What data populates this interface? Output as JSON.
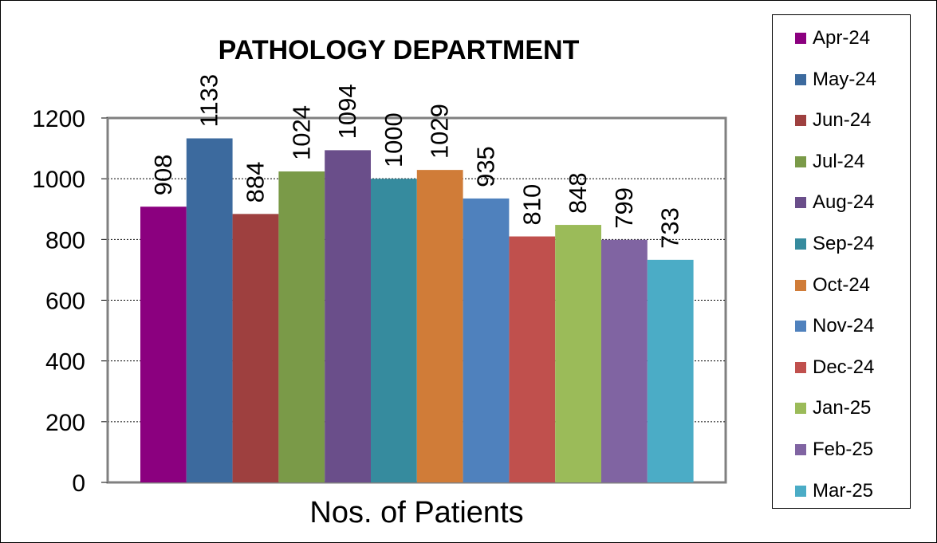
{
  "chart_data": {
    "type": "bar",
    "title": "PATHOLOGY DEPARTMENT",
    "xlabel": "Nos. of Patients",
    "ylabel": "",
    "ylim": [
      0,
      1200
    ],
    "yticks": [
      0,
      200,
      400,
      600,
      800,
      1000,
      1200
    ],
    "grid": true,
    "legend_position": "right",
    "series": [
      {
        "name": "Apr-24",
        "value": 908,
        "color": "#8B007F"
      },
      {
        "name": "May-24",
        "value": 1133,
        "color": "#3C6A9E"
      },
      {
        "name": "Jun-24",
        "value": 884,
        "color": "#9E403F"
      },
      {
        "name": "Jul-24",
        "value": 1024,
        "color": "#7A9A48"
      },
      {
        "name": "Aug-24",
        "value": 1094,
        "color": "#6A4E8A"
      },
      {
        "name": "Sep-24",
        "value": 1000,
        "color": "#368B9E"
      },
      {
        "name": "Oct-24",
        "value": 1029,
        "color": "#D07C38"
      },
      {
        "name": "Nov-24",
        "value": 935,
        "color": "#4F81BD"
      },
      {
        "name": "Dec-24",
        "value": 810,
        "color": "#C0504D"
      },
      {
        "name": "Jan-25",
        "value": 848,
        "color": "#9BBB59"
      },
      {
        "name": "Feb-25",
        "value": 799,
        "color": "#8064A2"
      },
      {
        "name": "Mar-25",
        "value": 733,
        "color": "#4BACC6"
      }
    ]
  }
}
